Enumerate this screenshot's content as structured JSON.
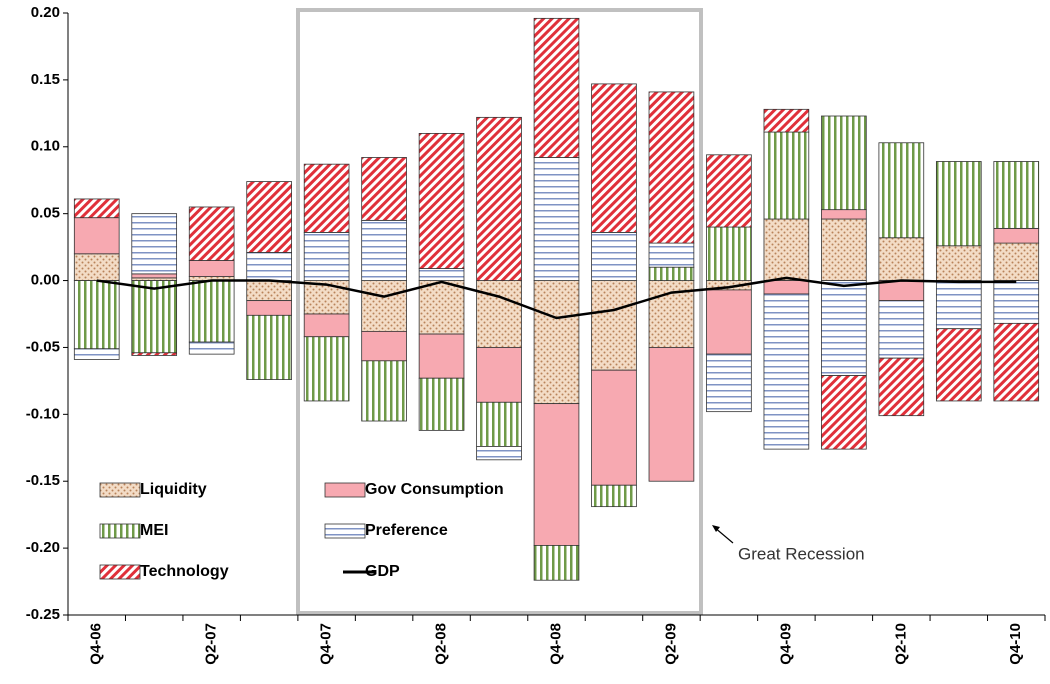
{
  "chart_data": {
    "type": "bar",
    "stacked": true,
    "categories": [
      "Q4-06",
      null,
      "Q2-07",
      null,
      "Q4-07",
      null,
      "Q2-08",
      null,
      "Q4-08",
      null,
      "Q2-09",
      null,
      "Q4-09",
      null,
      "Q2-10",
      null,
      "Q4-10"
    ],
    "series": [
      {
        "name": "Liquidity",
        "color": "#b9835a",
        "hatch": "dots",
        "values": [
          0.02,
          0.002,
          0.003,
          -0.015,
          -0.025,
          -0.038,
          -0.04,
          -0.05,
          -0.092,
          -0.067,
          -0.05,
          -0.007,
          0.046,
          0.046,
          0.032,
          0.026,
          0.028
        ]
      },
      {
        "name": "Gov Consumption",
        "color": "#f7a9b1",
        "hatch": "solid",
        "values": [
          0.027,
          0.003,
          0.012,
          -0.011,
          -0.017,
          -0.022,
          -0.033,
          -0.041,
          -0.106,
          -0.086,
          -0.1,
          -0.048,
          -0.01,
          0.007,
          -0.015,
          0,
          0.011
        ]
      },
      {
        "name": "MEI",
        "color": "#6f9a48",
        "hatch": "vertical",
        "values": [
          -0.051,
          -0.054,
          -0.046,
          -0.048,
          -0.048,
          -0.045,
          -0.039,
          -0.033,
          -0.026,
          -0.016,
          0.01,
          0.04,
          0.065,
          0.07,
          0.071,
          0.063,
          0.05
        ]
      },
      {
        "name": "Preference",
        "color": "#7f93c4",
        "hatch": "horizontal",
        "values": [
          -0.008,
          0.045,
          -0.009,
          0.021,
          0.036,
          0.045,
          0.009,
          -0.01,
          0.092,
          0.036,
          0.018,
          -0.043,
          -0.116,
          -0.071,
          -0.043,
          -0.036,
          -0.032
        ]
      },
      {
        "name": "Technology",
        "color": "#e0303a",
        "hatch": "diagonal",
        "values": [
          0.014,
          -0.002,
          0.04,
          0.053,
          0.051,
          0.047,
          0.101,
          0.122,
          0.104,
          0.111,
          0.113,
          0.054,
          0.017,
          -0.055,
          -0.043,
          -0.054,
          -0.058
        ]
      },
      {
        "name": "GDP",
        "type": "line",
        "color": "#000000",
        "values": [
          0,
          -0.006,
          0,
          0,
          -0.003,
          -0.012,
          -0.001,
          -0.012,
          -0.028,
          -0.022,
          -0.009,
          -0.005,
          0.002,
          -0.004,
          0,
          -0.001,
          -0.001
        ]
      }
    ],
    "annotation": "Great Recession",
    "ylim": [
      -0.25,
      0.2
    ],
    "yticks": [
      {
        "value": -0.25,
        "label": "-0.25"
      },
      {
        "value": -0.2,
        "label": "-0.20"
      },
      {
        "value": -0.15,
        "label": "-0.15"
      },
      {
        "value": -0.1,
        "label": "-0.10"
      },
      {
        "value": -0.05,
        "label": "-0.05"
      },
      {
        "value": 0,
        "label": "0.00"
      },
      {
        "value": 0.05,
        "label": "0.05"
      },
      {
        "value": 0.1,
        "label": "0.10"
      },
      {
        "value": 0.15,
        "label": "0.15"
      },
      {
        "value": 0.2,
        "label": "0.20"
      }
    ],
    "grid": false,
    "legend": "lower-left"
  }
}
